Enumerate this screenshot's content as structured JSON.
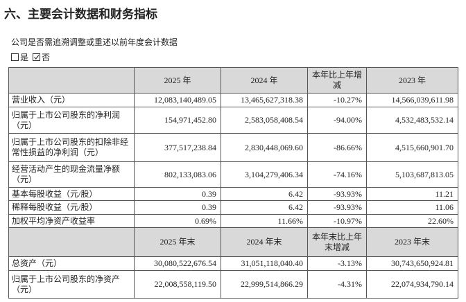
{
  "header": {
    "title": "六、主要会计数据和财务指标"
  },
  "question": {
    "text": "公司是否需追溯调整或重述以前年度会计数据",
    "options": [
      "是",
      "否"
    ]
  },
  "table": {
    "header1": [
      "2025 年",
      "2024 年",
      "本年比上年增减",
      "2023 年"
    ],
    "rows1": [
      [
        "营业收入（元）",
        "12,083,140,489.05",
        "13,465,627,318.38",
        "-10.27%",
        "14,566,039,611.98"
      ],
      [
        "归属于上市公司股东的净利润（元）",
        "154,971,452.80",
        "2,583,058,408.54",
        "-94.00%",
        "4,532,483,532.14"
      ],
      [
        "归属于上市公司股东的扣除非经常性损益的净利润（元）",
        "377,517,238.84",
        "2,830,448,069.60",
        "-86.66%",
        "4,515,660,901.70"
      ],
      [
        "经营活动产生的现金流量净额（元）",
        "802,133,083.06",
        "3,104,279,406.34",
        "-74.16%",
        "5,103,687,813.05"
      ],
      [
        "基本每股收益（元/股）",
        "0.39",
        "6.42",
        "-93.93%",
        "11.21"
      ],
      [
        "稀释每股收益（元/股）",
        "0.39",
        "6.42",
        "-93.93%",
        "11.06"
      ],
      [
        "加权平均净资产收益率",
        "0.69%",
        "11.66%",
        "-10.97%",
        "22.60%"
      ]
    ],
    "header2": [
      "2025 年末",
      "2024 年末",
      "本年末比上年末增减",
      "2023 年末"
    ],
    "rows2": [
      [
        "总资产（元）",
        "30,080,522,676.54",
        "31,051,118,040.40",
        "-3.13%",
        "30,743,650,924.81"
      ],
      [
        "归属于上市公司股东的净资产（元）",
        "22,008,558,119.50",
        "22,999,514,866.29",
        "-4.31%",
        "22,074,934,790.14"
      ]
    ]
  }
}
